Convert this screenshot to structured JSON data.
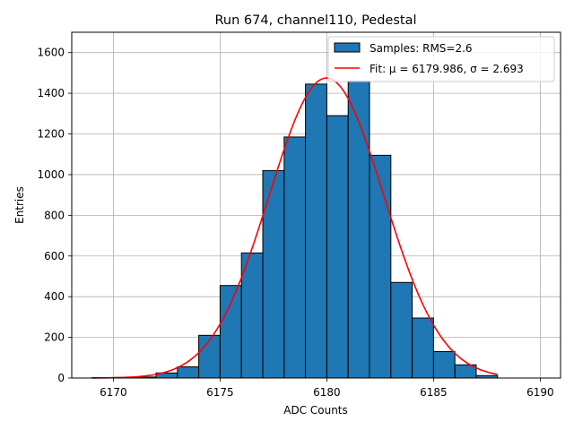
{
  "chart_data": {
    "type": "bar",
    "title": "Run 674, channel110, Pedestal",
    "xlabel": "ADC Counts",
    "ylabel": "Entries",
    "xlim": [
      6168.05,
      6190.95
    ],
    "ylim": [
      0,
      1700
    ],
    "xticks": [
      6170,
      6175,
      6180,
      6185,
      6190
    ],
    "yticks": [
      0,
      200,
      400,
      600,
      800,
      1000,
      1200,
      1400,
      1600
    ],
    "grid": true,
    "legend_position": "top-right",
    "histogram": {
      "name": "Samples: RMS=2.6",
      "color": "#1f77b4",
      "edgecolor": "#000000",
      "bin_edges": [
        6169,
        6170,
        6171,
        6172,
        6173,
        6174,
        6175,
        6176,
        6177,
        6178,
        6179,
        6180,
        6181,
        6182,
        6183,
        6184,
        6185,
        6186,
        6187,
        6188
      ],
      "counts": [
        2,
        3,
        5,
        25,
        55,
        210,
        455,
        615,
        1020,
        1185,
        1445,
        1290,
        1460,
        1095,
        470,
        295,
        130,
        65,
        12
      ]
    },
    "fit": {
      "name": "Fit: μ = 6179.986, σ = 2.693",
      "color": "#ff0000",
      "mu": 6179.986,
      "sigma": 2.693,
      "amplitude": 1475,
      "x_range": [
        6169,
        6188
      ]
    }
  }
}
